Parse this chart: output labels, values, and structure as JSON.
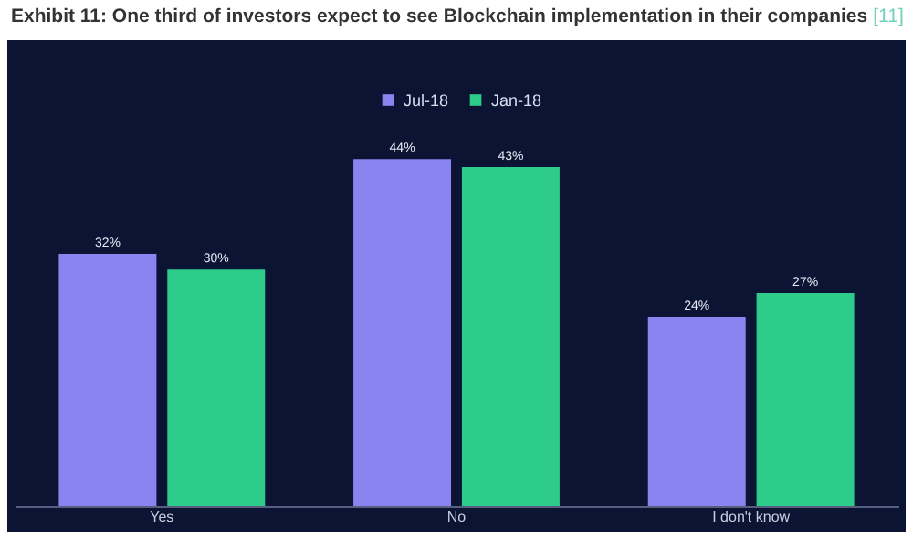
{
  "chart_data": {
    "type": "bar",
    "title": "Exhibit 11: One third of investors expect to see Blockchain implementation in their companies",
    "annotations": [
      "[11]"
    ],
    "categories": [
      "Yes",
      "No",
      "I don't know"
    ],
    "legend": "top",
    "series": [
      {
        "name": "Jul-18",
        "color": "#8a84f0",
        "values": [
          32,
          44,
          24
        ],
        "value_labels": [
          "32%",
          "44%",
          "24%"
        ]
      },
      {
        "name": "Jan-18",
        "color": "#2ecc8a",
        "values": [
          30,
          43,
          27
        ],
        "value_labels": [
          "30%",
          "43%",
          "27%"
        ]
      }
    ]
  }
}
